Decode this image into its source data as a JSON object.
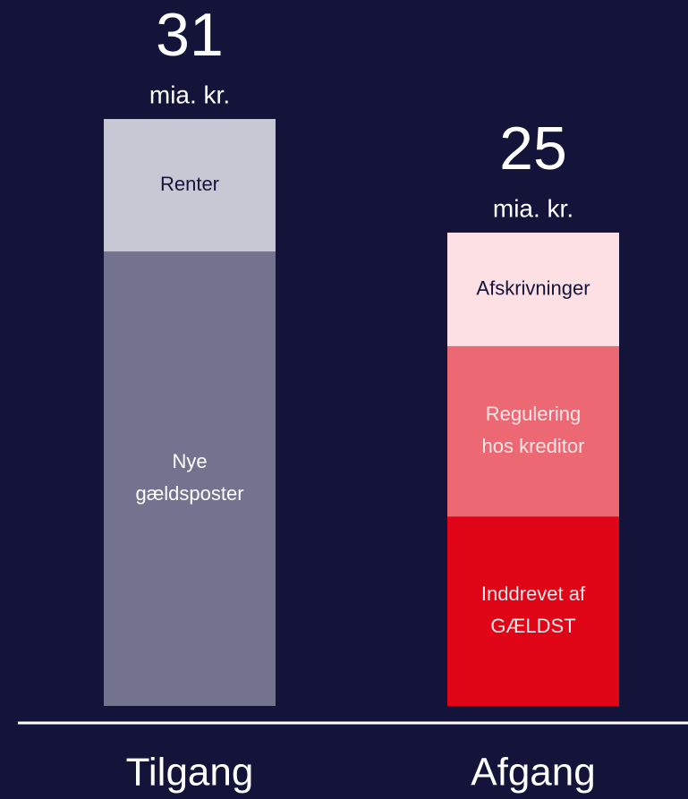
{
  "chart_data": {
    "type": "stacked_bar",
    "bars": [
      {
        "category": "Tilgang",
        "total": 31,
        "unit": "mia. kr.",
        "segments": [
          {
            "lines": [
              "Nye",
              "gældsposter"
            ],
            "value": 24,
            "color": "#737390",
            "text_color": "#ffffff"
          },
          {
            "lines": [
              "Renter"
            ],
            "value": 7,
            "color": "#c8c8d4",
            "text_color": "#14143a"
          }
        ]
      },
      {
        "category": "Afgang",
        "total": 25,
        "unit": "mia. kr.",
        "segments": [
          {
            "lines": [
              "Inddrevet af",
              "GÆLDST"
            ],
            "value": 10,
            "color": "#df0416",
            "text_color": "#ffe6e8"
          },
          {
            "lines": [
              "Regulering",
              "hos kreditor"
            ],
            "value": 9,
            "color": "#ec6873",
            "text_color": "#ffe6e8"
          },
          {
            "lines": [
              "Afskrivninger"
            ],
            "value": 6,
            "color": "#fde0e4",
            "text_color": "#14143a"
          }
        ]
      }
    ]
  }
}
